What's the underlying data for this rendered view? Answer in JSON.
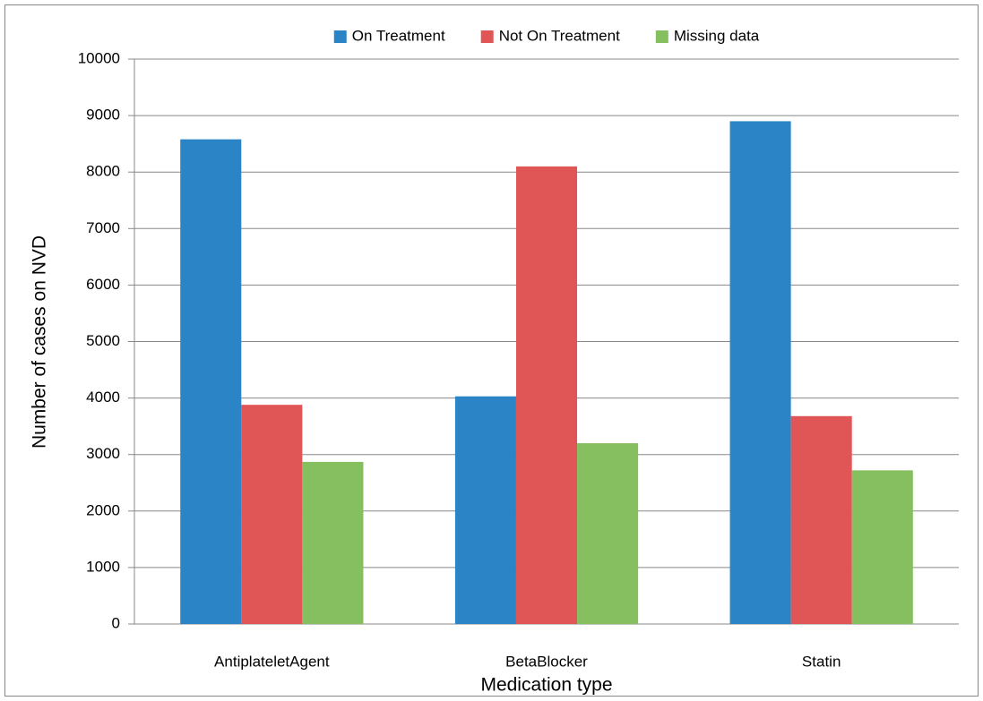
{
  "chart_data": {
    "type": "bar",
    "x_label": "Medication type",
    "y_label": "Number of cases on NVD",
    "categories": [
      "AntiplateletAgent",
      "BetaBlocker",
      "Statin"
    ],
    "series": [
      {
        "name": "On Treatment",
        "color": "#2a84c5",
        "values": [
          8580,
          4030,
          8900
        ]
      },
      {
        "name": "Not On Treatment",
        "color": "#e05555",
        "values": [
          3880,
          8100,
          3680
        ]
      },
      {
        "name": "Missing data",
        "color": "#86bf5f",
        "values": [
          2870,
          3200,
          2720
        ]
      }
    ],
    "ylim": [
      0,
      10000
    ],
    "yticks": [
      0,
      1000,
      2000,
      3000,
      4000,
      5000,
      6000,
      7000,
      8000,
      9000,
      10000
    ],
    "grid": true,
    "legend": "top"
  }
}
